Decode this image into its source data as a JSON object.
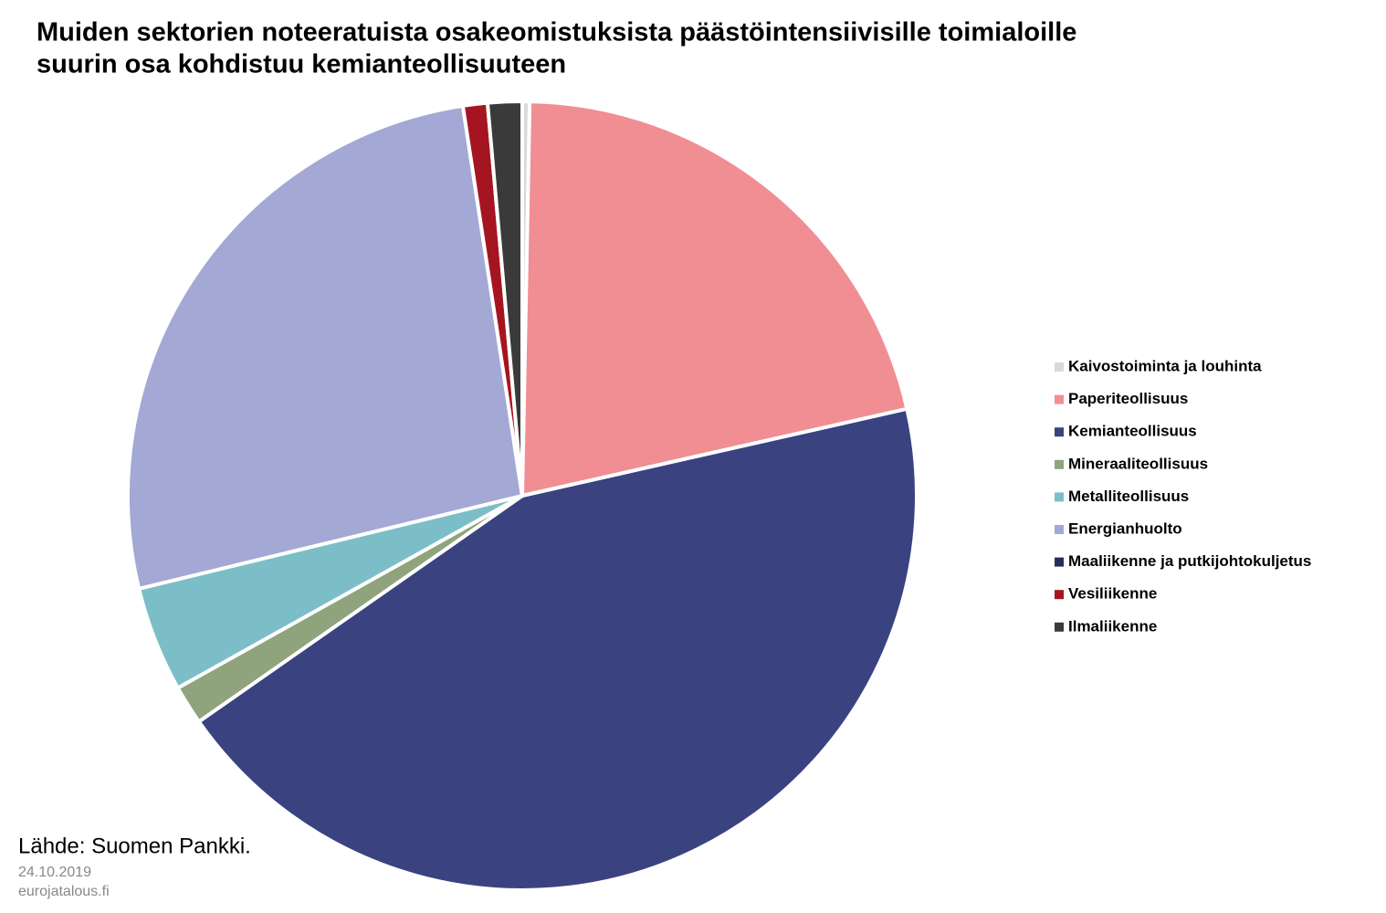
{
  "chart_data": {
    "type": "pie",
    "title": [
      "Muiden sektorien noteeratuista osakeomistuksista päästöintensiivisille toimialoille",
      "suurin osa kohdistuu kemianteollisuuteen"
    ],
    "categories": [
      "Kaivostoiminta ja louhinta",
      "Paperiteollisuus",
      "Kemianteollisuus",
      "Mineraaliteollisuus",
      "Metalliteollisuus",
      "Energianhuolto",
      "Maaliikenne ja putkijohtokuljetus",
      "Vesiliikenne",
      "Ilmaliikenne"
    ],
    "values": [
      0.3,
      21.1,
      43.7,
      1.6,
      4.3,
      26.3,
      0,
      1.0,
      1.4
    ],
    "colors": [
      "#d9d9d9",
      "#f08e94",
      "#3b4280",
      "#8fa47c",
      "#7bbec8",
      "#a3a8d4",
      "#272d5a",
      "#a51521",
      "#3a3a3a"
    ],
    "source": "Lähde: Suomen Pankki.",
    "date": "24.10.2019",
    "site": "eurojatalous.fi"
  }
}
